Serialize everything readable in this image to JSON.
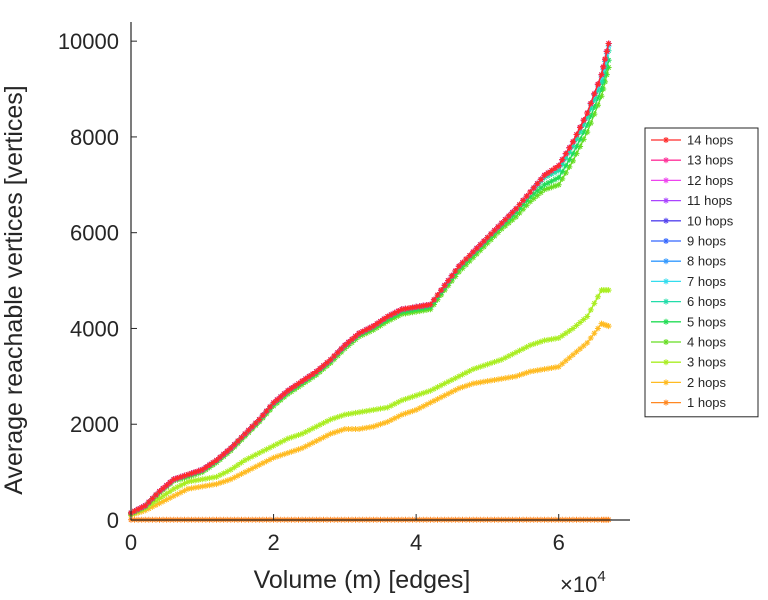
{
  "chart_data": {
    "type": "line",
    "xlabel": "Volume (m) [edges]",
    "ylabel": "Average reachable vertices [vertices]",
    "x_multiplier_label": "×10",
    "x_multiplier_exponent": "4",
    "xlim": [
      0,
      70000
    ],
    "ylim": [
      0,
      10400
    ],
    "xticks": [
      0,
      20000,
      40000,
      60000
    ],
    "xtick_labels": [
      "0",
      "2",
      "4",
      "6"
    ],
    "yticks": [
      0,
      2000,
      4000,
      6000,
      8000,
      10000
    ],
    "ytick_labels": [
      "0",
      "2000",
      "4000",
      "6000",
      "8000",
      "10000"
    ],
    "legend_position": "right",
    "x": [
      0,
      2000,
      4000,
      6000,
      8000,
      10000,
      12000,
      14000,
      16000,
      18000,
      20000,
      22000,
      24000,
      26000,
      28000,
      30000,
      32000,
      34000,
      36000,
      38000,
      40000,
      42000,
      44000,
      46000,
      48000,
      50000,
      52000,
      54000,
      56000,
      58000,
      60000,
      62000,
      64000,
      66000,
      67000
    ],
    "series": [
      {
        "name": "14 hops",
        "color": "#ff2a2a",
        "values": [
          150,
          300,
          600,
          850,
          950,
          1050,
          1250,
          1500,
          1800,
          2100,
          2450,
          2700,
          2900,
          3100,
          3350,
          3650,
          3900,
          4050,
          4250,
          4400,
          4450,
          4500,
          4900,
          5300,
          5600,
          5900,
          6200,
          6500,
          6850,
          7200,
          7400,
          7900,
          8500,
          9300,
          9950
        ]
      },
      {
        "name": "13 hops",
        "color": "#ff3399",
        "values": [
          150,
          300,
          600,
          850,
          950,
          1050,
          1250,
          1500,
          1800,
          2100,
          2450,
          2700,
          2900,
          3100,
          3350,
          3650,
          3900,
          4050,
          4250,
          4400,
          4450,
          4500,
          4900,
          5300,
          5600,
          5900,
          6200,
          6500,
          6850,
          7200,
          7400,
          7900,
          8500,
          9300,
          9950
        ]
      },
      {
        "name": "12 hops",
        "color": "#ee44ee",
        "values": [
          150,
          300,
          600,
          850,
          950,
          1050,
          1250,
          1500,
          1800,
          2100,
          2450,
          2700,
          2900,
          3100,
          3350,
          3650,
          3900,
          4050,
          4250,
          4400,
          4450,
          4500,
          4900,
          5300,
          5600,
          5900,
          6200,
          6500,
          6850,
          7200,
          7400,
          7900,
          8500,
          9300,
          9950
        ]
      },
      {
        "name": "11 hops",
        "color": "#aa44ff",
        "values": [
          150,
          300,
          600,
          850,
          950,
          1050,
          1250,
          1500,
          1800,
          2100,
          2450,
          2700,
          2900,
          3100,
          3350,
          3650,
          3900,
          4050,
          4250,
          4400,
          4450,
          4500,
          4900,
          5300,
          5600,
          5900,
          6200,
          6500,
          6850,
          7200,
          7400,
          7900,
          8500,
          9300,
          9950
        ]
      },
      {
        "name": "10 hops",
        "color": "#5544ee",
        "values": [
          150,
          300,
          600,
          850,
          950,
          1050,
          1250,
          1500,
          1800,
          2100,
          2450,
          2700,
          2900,
          3100,
          3350,
          3650,
          3900,
          4050,
          4250,
          4400,
          4450,
          4500,
          4900,
          5300,
          5600,
          5900,
          6200,
          6500,
          6850,
          7200,
          7400,
          7900,
          8500,
          9300,
          9950
        ]
      },
      {
        "name": "9 hops",
        "color": "#3366ff",
        "values": [
          150,
          300,
          600,
          850,
          950,
          1050,
          1250,
          1500,
          1800,
          2100,
          2450,
          2700,
          2900,
          3100,
          3350,
          3650,
          3900,
          4050,
          4250,
          4400,
          4450,
          4500,
          4900,
          5300,
          5600,
          5900,
          6200,
          6500,
          6850,
          7200,
          7400,
          7900,
          8500,
          9300,
          9950
        ]
      },
      {
        "name": "8 hops",
        "color": "#3399ff",
        "values": [
          150,
          300,
          600,
          850,
          950,
          1050,
          1250,
          1500,
          1800,
          2100,
          2450,
          2700,
          2900,
          3100,
          3350,
          3650,
          3900,
          4050,
          4250,
          4400,
          4450,
          4500,
          4900,
          5300,
          5600,
          5900,
          6200,
          6500,
          6850,
          7200,
          7400,
          7900,
          8500,
          9300,
          9950
        ]
      },
      {
        "name": "7 hops",
        "color": "#33ddee",
        "values": [
          150,
          300,
          600,
          850,
          950,
          1050,
          1250,
          1500,
          1800,
          2100,
          2450,
          2700,
          2900,
          3100,
          3350,
          3650,
          3900,
          4050,
          4250,
          4400,
          4450,
          4500,
          4900,
          5300,
          5600,
          5900,
          6200,
          6500,
          6850,
          7200,
          7400,
          7900,
          8500,
          9250,
          9900
        ]
      },
      {
        "name": "6 hops",
        "color": "#22ddaa",
        "values": [
          150,
          300,
          600,
          850,
          950,
          1050,
          1250,
          1500,
          1800,
          2100,
          2450,
          2700,
          2900,
          3100,
          3350,
          3650,
          3900,
          4050,
          4250,
          4400,
          4450,
          4500,
          4900,
          5300,
          5600,
          5900,
          6200,
          6500,
          6850,
          7150,
          7300,
          7800,
          8400,
          9150,
          9800
        ]
      },
      {
        "name": "5 hops",
        "color": "#22dd55",
        "values": [
          140,
          290,
          590,
          840,
          930,
          1030,
          1230,
          1480,
          1780,
          2080,
          2420,
          2670,
          2870,
          3070,
          3320,
          3620,
          3870,
          4020,
          4200,
          4350,
          4400,
          4450,
          4850,
          5250,
          5550,
          5850,
          6150,
          6420,
          6750,
          7000,
          7150,
          7650,
          8250,
          9000,
          9600
        ]
      },
      {
        "name": "4 hops",
        "color": "#66dd22",
        "values": [
          130,
          280,
          570,
          820,
          900,
          1000,
          1200,
          1450,
          1750,
          2050,
          2380,
          2630,
          2830,
          3030,
          3280,
          3580,
          3830,
          3970,
          4150,
          4300,
          4350,
          4400,
          4800,
          5180,
          5480,
          5780,
          6080,
          6330,
          6650,
          6900,
          7000,
          7500,
          8100,
          8850,
          9450
        ]
      },
      {
        "name": "3 hops",
        "color": "#aaee22",
        "values": [
          120,
          250,
          450,
          650,
          800,
          850,
          900,
          1050,
          1250,
          1400,
          1550,
          1700,
          1800,
          1950,
          2100,
          2200,
          2250,
          2300,
          2350,
          2500,
          2600,
          2700,
          2850,
          3000,
          3150,
          3250,
          3350,
          3500,
          3650,
          3750,
          3800,
          4000,
          4250,
          4800,
          4800
        ]
      },
      {
        "name": "2 hops",
        "color": "#ffbb22",
        "values": [
          100,
          200,
          350,
          500,
          650,
          700,
          750,
          850,
          1000,
          1150,
          1300,
          1400,
          1500,
          1650,
          1800,
          1900,
          1900,
          1950,
          2050,
          2200,
          2300,
          2450,
          2600,
          2750,
          2850,
          2900,
          2950,
          3000,
          3100,
          3150,
          3200,
          3450,
          3700,
          4100,
          4050
        ]
      },
      {
        "name": "1 hops",
        "color": "#ff8822",
        "values": [
          5,
          5,
          5,
          5,
          5,
          5,
          5,
          5,
          5,
          5,
          5,
          5,
          5,
          5,
          5,
          5,
          5,
          5,
          5,
          5,
          5,
          5,
          5,
          5,
          5,
          5,
          5,
          5,
          5,
          5,
          5,
          5,
          5,
          5,
          5
        ]
      }
    ]
  }
}
